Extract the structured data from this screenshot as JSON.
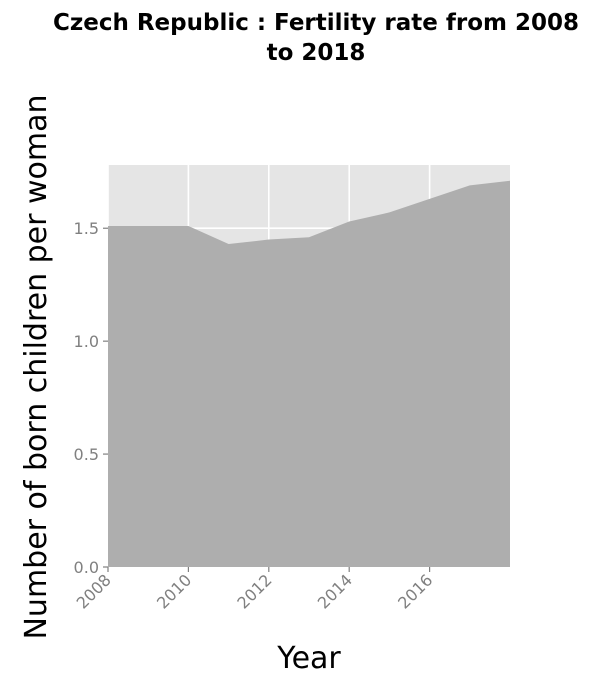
{
  "chart_data": {
    "type": "area",
    "title_lines": [
      "Czech Republic : Fertility rate from 2008",
      "to 2018"
    ],
    "xlabel": "Year",
    "ylabel": "Number of born children per woman",
    "x": [
      2008,
      2009,
      2010,
      2011,
      2012,
      2013,
      2014,
      2015,
      2016,
      2017,
      2018
    ],
    "values": [
      1.51,
      1.51,
      1.51,
      1.43,
      1.45,
      1.46,
      1.53,
      1.57,
      1.63,
      1.69,
      1.71
    ],
    "xlim": [
      2008,
      2018
    ],
    "ylim": [
      0,
      1.78
    ],
    "x_ticks": [
      2008,
      2010,
      2012,
      2014,
      2016
    ],
    "x_tick_labels": [
      "2008",
      "2010",
      "2012",
      "2014",
      "2016"
    ],
    "y_ticks": [
      0,
      0.5,
      1.0,
      1.5
    ],
    "y_tick_labels": [
      "0.0",
      "0.5",
      "1.0",
      "1.5"
    ],
    "grid": true,
    "colors": {
      "panel_background": "#e5e5e5",
      "area_fill": "#aeaeae",
      "grid": "#ffffff"
    }
  }
}
